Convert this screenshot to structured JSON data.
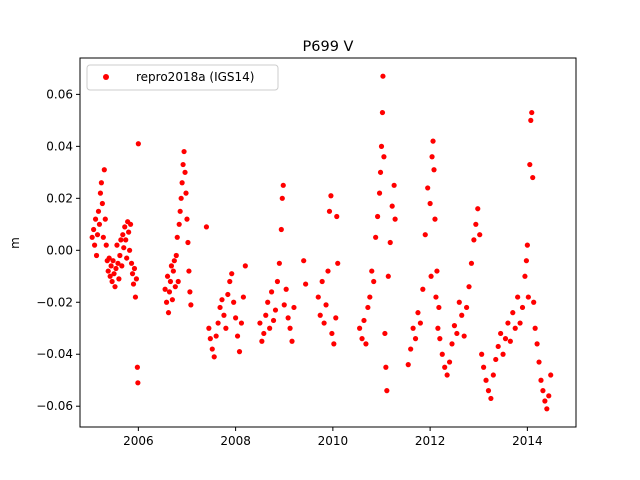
{
  "chart_data": {
    "type": "scatter",
    "title": "P699 V",
    "xlabel": "",
    "ylabel": "m",
    "xlim": [
      2004.8,
      2015.0
    ],
    "ylim": [
      -0.068,
      0.074
    ],
    "x_ticks": [
      2006,
      2008,
      2010,
      2012,
      2014
    ],
    "x_tick_labels": [
      "2006",
      "2008",
      "2010",
      "2012",
      "2014"
    ],
    "y_ticks": [
      -0.06,
      -0.04,
      -0.02,
      0.0,
      0.02,
      0.04,
      0.06
    ],
    "y_tick_labels": [
      "−0.06",
      "−0.04",
      "−0.02",
      "0.00",
      "0.02",
      "0.04",
      "0.06"
    ],
    "grid": false,
    "legend_position": "upper-left",
    "series": [
      {
        "name": "repro2018a (IGS14)",
        "color": "#ff0000",
        "marker": "circle",
        "points": [
          [
            2005.05,
            0.005
          ],
          [
            2005.08,
            0.008
          ],
          [
            2005.1,
            0.002
          ],
          [
            2005.12,
            0.012
          ],
          [
            2005.14,
            -0.002
          ],
          [
            2005.16,
            0.006
          ],
          [
            2005.18,
            0.015
          ],
          [
            2005.2,
            0.01
          ],
          [
            2005.22,
            0.022
          ],
          [
            2005.24,
            0.026
          ],
          [
            2005.26,
            0.018
          ],
          [
            2005.28,
            0.005
          ],
          [
            2005.3,
            0.031
          ],
          [
            2005.32,
            0.012
          ],
          [
            2005.34,
            0.002
          ],
          [
            2005.36,
            -0.004
          ],
          [
            2005.38,
            -0.008
          ],
          [
            2005.4,
            -0.003
          ],
          [
            2005.42,
            -0.01
          ],
          [
            2005.44,
            -0.006
          ],
          [
            2005.46,
            -0.012
          ],
          [
            2005.48,
            -0.004
          ],
          [
            2005.5,
            -0.009
          ],
          [
            2005.52,
            -0.014
          ],
          [
            2005.54,
            -0.007
          ],
          [
            2005.56,
            0.002
          ],
          [
            2005.58,
            -0.005
          ],
          [
            2005.6,
            -0.011
          ],
          [
            2005.62,
            -0.002
          ],
          [
            2005.64,
            0.004
          ],
          [
            2005.66,
            -0.006
          ],
          [
            2005.68,
            0.006
          ],
          [
            2005.7,
            0.001
          ],
          [
            2005.72,
            0.009
          ],
          [
            2005.74,
            0.004
          ],
          [
            2005.76,
            -0.003
          ],
          [
            2005.78,
            0.011
          ],
          [
            2005.8,
            0.007
          ],
          [
            2005.82,
            0.0
          ],
          [
            2005.84,
            0.01
          ],
          [
            2005.86,
            -0.005
          ],
          [
            2005.88,
            -0.009
          ],
          [
            2005.9,
            -0.013
          ],
          [
            2005.92,
            -0.007
          ],
          [
            2005.94,
            -0.018
          ],
          [
            2005.96,
            -0.011
          ],
          [
            2005.98,
            -0.045
          ],
          [
            2005.99,
            -0.051
          ],
          [
            2006.0,
            0.041
          ],
          [
            2006.55,
            -0.015
          ],
          [
            2006.58,
            -0.02
          ],
          [
            2006.6,
            -0.01
          ],
          [
            2006.62,
            -0.024
          ],
          [
            2006.64,
            -0.016
          ],
          [
            2006.66,
            -0.012
          ],
          [
            2006.68,
            -0.006
          ],
          [
            2006.7,
            -0.019
          ],
          [
            2006.72,
            -0.008
          ],
          [
            2006.74,
            -0.004
          ],
          [
            2006.76,
            -0.014
          ],
          [
            2006.78,
            -0.002
          ],
          [
            2006.8,
            0.005
          ],
          [
            2006.82,
            -0.012
          ],
          [
            2006.84,
            0.01
          ],
          [
            2006.86,
            0.015
          ],
          [
            2006.88,
            0.02
          ],
          [
            2006.9,
            0.026
          ],
          [
            2006.92,
            0.033
          ],
          [
            2006.94,
            0.038
          ],
          [
            2006.96,
            0.03
          ],
          [
            2006.98,
            0.022
          ],
          [
            2007.0,
            0.012
          ],
          [
            2007.02,
            0.003
          ],
          [
            2007.04,
            -0.008
          ],
          [
            2007.06,
            -0.016
          ],
          [
            2007.08,
            -0.021
          ],
          [
            2007.4,
            0.009
          ],
          [
            2007.45,
            -0.03
          ],
          [
            2007.48,
            -0.034
          ],
          [
            2007.52,
            -0.038
          ],
          [
            2007.56,
            -0.041
          ],
          [
            2007.6,
            -0.033
          ],
          [
            2007.64,
            -0.028
          ],
          [
            2007.68,
            -0.022
          ],
          [
            2007.72,
            -0.019
          ],
          [
            2007.76,
            -0.025
          ],
          [
            2007.8,
            -0.03
          ],
          [
            2007.84,
            -0.017
          ],
          [
            2007.88,
            -0.012
          ],
          [
            2007.92,
            -0.009
          ],
          [
            2007.96,
            -0.02
          ],
          [
            2008.0,
            -0.026
          ],
          [
            2008.04,
            -0.033
          ],
          [
            2008.08,
            -0.039
          ],
          [
            2008.12,
            -0.028
          ],
          [
            2008.16,
            -0.018
          ],
          [
            2008.2,
            -0.006
          ],
          [
            2008.5,
            -0.028
          ],
          [
            2008.54,
            -0.035
          ],
          [
            2008.58,
            -0.032
          ],
          [
            2008.62,
            -0.025
          ],
          [
            2008.66,
            -0.02
          ],
          [
            2008.7,
            -0.03
          ],
          [
            2008.74,
            -0.016
          ],
          [
            2008.78,
            -0.027
          ],
          [
            2008.82,
            -0.023
          ],
          [
            2008.86,
            -0.012
          ],
          [
            2008.9,
            -0.005
          ],
          [
            2008.94,
            0.008
          ],
          [
            2008.96,
            0.02
          ],
          [
            2008.98,
            0.025
          ],
          [
            2009.0,
            -0.021
          ],
          [
            2009.04,
            -0.015
          ],
          [
            2009.08,
            -0.026
          ],
          [
            2009.12,
            -0.03
          ],
          [
            2009.16,
            -0.035
          ],
          [
            2009.2,
            -0.022
          ],
          [
            2009.4,
            -0.004
          ],
          [
            2009.44,
            -0.013
          ],
          [
            2009.7,
            -0.018
          ],
          [
            2009.74,
            -0.025
          ],
          [
            2009.78,
            -0.012
          ],
          [
            2009.82,
            -0.028
          ],
          [
            2009.86,
            -0.021
          ],
          [
            2009.9,
            -0.008
          ],
          [
            2009.93,
            0.015
          ],
          [
            2009.96,
            0.021
          ],
          [
            2009.98,
            -0.032
          ],
          [
            2010.02,
            -0.036
          ],
          [
            2010.06,
            -0.026
          ],
          [
            2010.08,
            0.013
          ],
          [
            2010.1,
            -0.005
          ],
          [
            2010.55,
            -0.03
          ],
          [
            2010.6,
            -0.034
          ],
          [
            2010.64,
            -0.027
          ],
          [
            2010.68,
            -0.036
          ],
          [
            2010.72,
            -0.022
          ],
          [
            2010.76,
            -0.018
          ],
          [
            2010.8,
            -0.008
          ],
          [
            2010.84,
            -0.012
          ],
          [
            2010.88,
            0.005
          ],
          [
            2010.92,
            0.013
          ],
          [
            2010.96,
            0.022
          ],
          [
            2010.98,
            0.03
          ],
          [
            2011.0,
            0.04
          ],
          [
            2011.02,
            0.053
          ],
          [
            2011.03,
            0.067
          ],
          [
            2011.05,
            0.036
          ],
          [
            2011.07,
            -0.032
          ],
          [
            2011.09,
            -0.045
          ],
          [
            2011.11,
            -0.054
          ],
          [
            2011.14,
            -0.01
          ],
          [
            2011.18,
            0.003
          ],
          [
            2011.22,
            0.017
          ],
          [
            2011.26,
            0.025
          ],
          [
            2011.28,
            0.012
          ],
          [
            2011.55,
            -0.044
          ],
          [
            2011.6,
            -0.038
          ],
          [
            2011.65,
            -0.03
          ],
          [
            2011.7,
            -0.034
          ],
          [
            2011.75,
            -0.024
          ],
          [
            2011.8,
            -0.028
          ],
          [
            2011.85,
            -0.015
          ],
          [
            2011.9,
            0.006
          ],
          [
            2011.95,
            0.024
          ],
          [
            2012.0,
            0.018
          ],
          [
            2012.02,
            -0.01
          ],
          [
            2012.04,
            0.036
          ],
          [
            2012.06,
            0.042
          ],
          [
            2012.08,
            0.031
          ],
          [
            2012.1,
            0.012
          ],
          [
            2012.12,
            -0.018
          ],
          [
            2012.14,
            -0.008
          ],
          [
            2012.16,
            -0.03
          ],
          [
            2012.18,
            -0.022
          ],
          [
            2012.2,
            -0.034
          ],
          [
            2012.25,
            -0.04
          ],
          [
            2012.3,
            -0.045
          ],
          [
            2012.35,
            -0.048
          ],
          [
            2012.4,
            -0.043
          ],
          [
            2012.45,
            -0.036
          ],
          [
            2012.5,
            -0.029
          ],
          [
            2012.55,
            -0.032
          ],
          [
            2012.6,
            -0.02
          ],
          [
            2012.65,
            -0.025
          ],
          [
            2012.7,
            -0.033
          ],
          [
            2012.75,
            -0.022
          ],
          [
            2012.8,
            -0.014
          ],
          [
            2012.85,
            -0.005
          ],
          [
            2012.9,
            0.004
          ],
          [
            2012.94,
            0.01
          ],
          [
            2012.98,
            0.016
          ],
          [
            2013.02,
            0.006
          ],
          [
            2013.06,
            -0.04
          ],
          [
            2013.1,
            -0.045
          ],
          [
            2013.15,
            -0.05
          ],
          [
            2013.2,
            -0.054
          ],
          [
            2013.25,
            -0.057
          ],
          [
            2013.3,
            -0.048
          ],
          [
            2013.35,
            -0.042
          ],
          [
            2013.4,
            -0.037
          ],
          [
            2013.45,
            -0.032
          ],
          [
            2013.5,
            -0.04
          ],
          [
            2013.55,
            -0.034
          ],
          [
            2013.6,
            -0.028
          ],
          [
            2013.65,
            -0.035
          ],
          [
            2013.7,
            -0.024
          ],
          [
            2013.75,
            -0.03
          ],
          [
            2013.8,
            -0.018
          ],
          [
            2013.85,
            -0.028
          ],
          [
            2013.9,
            -0.022
          ],
          [
            2013.95,
            -0.01
          ],
          [
            2013.98,
            -0.004
          ],
          [
            2014.0,
            0.002
          ],
          [
            2014.02,
            -0.018
          ],
          [
            2014.05,
            0.033
          ],
          [
            2014.07,
            0.05
          ],
          [
            2014.09,
            0.053
          ],
          [
            2014.11,
            0.028
          ],
          [
            2014.13,
            -0.02
          ],
          [
            2014.16,
            -0.03
          ],
          [
            2014.2,
            -0.036
          ],
          [
            2014.24,
            -0.043
          ],
          [
            2014.28,
            -0.05
          ],
          [
            2014.32,
            -0.054
          ],
          [
            2014.36,
            -0.058
          ],
          [
            2014.4,
            -0.061
          ],
          [
            2014.44,
            -0.056
          ],
          [
            2014.48,
            -0.048
          ]
        ]
      }
    ]
  }
}
